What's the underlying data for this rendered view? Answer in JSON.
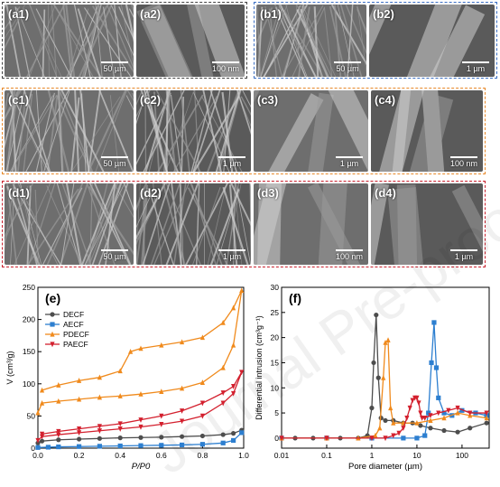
{
  "sem_panels": [
    {
      "label": "(a1)",
      "scale": "50 µm",
      "group": "a"
    },
    {
      "label": "(a2)",
      "scale": "100 nm",
      "group": "a"
    },
    {
      "label": "(b1)",
      "scale": "50 µm",
      "group": "b"
    },
    {
      "label": "(b2)",
      "scale": "1 µm",
      "group": "b"
    },
    {
      "label": "(c1)",
      "scale": "50 µm",
      "group": "c"
    },
    {
      "label": "(c2)",
      "scale": "1 µm",
      "group": "c"
    },
    {
      "label": "(c3)",
      "scale": "1 µm",
      "group": "c"
    },
    {
      "label": "(c4)",
      "scale": "100 nm",
      "group": "c"
    },
    {
      "label": "(d1)",
      "scale": "50 µm",
      "group": "d"
    },
    {
      "label": "(d2)",
      "scale": "1 µm",
      "group": "d"
    },
    {
      "label": "(d3)",
      "scale": "100 nm",
      "group": "d"
    },
    {
      "label": "(d4)",
      "scale": "1 µm",
      "group": "d"
    }
  ],
  "group_colors": {
    "a": "#444444",
    "b": "#3b6fc4",
    "c": "#e8892a",
    "d": "#c8202d"
  },
  "chart_data": [
    {
      "type": "line",
      "panel_label": "(e)",
      "xlabel": "P/P0",
      "ylabel": "V (cm³/g)",
      "xlim": [
        0,
        1.0
      ],
      "ylim": [
        0,
        250
      ],
      "xticks": [
        "0.0",
        "0.2",
        "0.4",
        "0.6",
        "0.8",
        "1.0"
      ],
      "yticks": [
        "0",
        "50",
        "100",
        "150",
        "200",
        "250"
      ],
      "legend_position": "top-left",
      "series": [
        {
          "name": "DECF",
          "color": "#4d4d4d",
          "marker": "circle",
          "x": [
            0,
            0.02,
            0.1,
            0.2,
            0.3,
            0.4,
            0.5,
            0.6,
            0.7,
            0.8,
            0.9,
            0.95,
            0.99
          ],
          "y": [
            8,
            11,
            13,
            14,
            15,
            16,
            16.5,
            17,
            18,
            19,
            21,
            23,
            28
          ]
        },
        {
          "name": "AECF",
          "color": "#2d7fd0",
          "marker": "square",
          "x": [
            0,
            0.05,
            0.1,
            0.2,
            0.3,
            0.4,
            0.5,
            0.6,
            0.7,
            0.8,
            0.9,
            0.95,
            0.99
          ],
          "y": [
            1,
            1.5,
            2,
            2.5,
            3,
            3.5,
            4,
            4.5,
            5,
            6,
            8,
            12,
            24
          ]
        },
        {
          "name": "PDECF",
          "color": "#f08a1c",
          "marker": "triangle-up",
          "x": [
            0,
            0.02,
            0.1,
            0.2,
            0.3,
            0.4,
            0.5,
            0.6,
            0.7,
            0.8,
            0.9,
            0.95,
            0.99,
            0.95,
            0.9,
            0.8,
            0.7,
            0.6,
            0.5,
            0.45,
            0.4,
            0.3,
            0.2,
            0.1,
            0.02
          ],
          "y": [
            55,
            70,
            73,
            76,
            79,
            81,
            84,
            88,
            93,
            102,
            125,
            160,
            245,
            218,
            195,
            172,
            165,
            160,
            155,
            150,
            120,
            110,
            105,
            98,
            90
          ]
        },
        {
          "name": "PAECF",
          "color": "#d3202e",
          "marker": "triangle-down",
          "x": [
            0,
            0.02,
            0.1,
            0.2,
            0.3,
            0.4,
            0.5,
            0.6,
            0.7,
            0.8,
            0.9,
            0.95,
            0.99,
            0.95,
            0.9,
            0.8,
            0.7,
            0.6,
            0.5,
            0.4,
            0.3,
            0.2,
            0.1,
            0.02
          ],
          "y": [
            12,
            18,
            21,
            24,
            27,
            30,
            33,
            37,
            42,
            50,
            70,
            85,
            118,
            96,
            86,
            70,
            58,
            50,
            44,
            38,
            34,
            30,
            26,
            22
          ]
        }
      ]
    },
    {
      "type": "line",
      "panel_label": "(f)",
      "xlabel": "Pore diameter (µm)",
      "ylabel": "Differential intrusion (cm³g⁻¹)",
      "xscale": "log",
      "xlim": [
        0.01,
        400
      ],
      "ylim": [
        -2,
        30
      ],
      "xticks": [
        "0.01",
        "0.1",
        "1",
        "10",
        "100"
      ],
      "yticks": [
        "0",
        "5",
        "10",
        "15",
        "20",
        "25",
        "30"
      ],
      "series": [
        {
          "name": "DECF",
          "color": "#4d4d4d",
          "marker": "circle",
          "x": [
            0.01,
            0.02,
            0.05,
            0.1,
            0.2,
            0.5,
            0.8,
            1.0,
            1.1,
            1.25,
            1.4,
            1.6,
            2,
            3,
            5,
            8,
            12,
            20,
            40,
            80,
            150,
            350
          ],
          "y": [
            0,
            0,
            0,
            0,
            0,
            0,
            0.5,
            6,
            15,
            24.5,
            12,
            4,
            3.5,
            3.5,
            3,
            3,
            2.5,
            2,
            1.5,
            1.2,
            2,
            3
          ]
        },
        {
          "name": "AECF",
          "color": "#2d7fd0",
          "marker": "square",
          "x": [
            0.01,
            0.1,
            1,
            5,
            10,
            15,
            18,
            21,
            24,
            27,
            30,
            40,
            60,
            100,
            200,
            350
          ],
          "y": [
            0,
            0,
            0,
            0,
            0,
            0.5,
            5,
            15,
            23,
            14,
            8,
            5,
            4.5,
            5.5,
            5,
            4.5
          ]
        },
        {
          "name": "PDECF",
          "color": "#f08a1c",
          "marker": "triangle-up",
          "x": [
            0.01,
            0.1,
            0.5,
            1.2,
            1.5,
            1.8,
            2.0,
            2.3,
            2.6,
            3,
            5,
            10,
            20,
            40,
            80,
            150,
            350
          ],
          "y": [
            0,
            0,
            0,
            0.5,
            2,
            12,
            19,
            19.5,
            6,
            3,
            3,
            3,
            3.5,
            4,
            5,
            4.5,
            4
          ]
        },
        {
          "name": "PAECF",
          "color": "#d3202e",
          "marker": "triangle-down",
          "x": [
            0.01,
            0.1,
            1,
            2,
            3,
            4,
            5,
            6,
            7,
            8,
            9,
            10,
            11,
            12,
            13,
            15,
            20,
            30,
            50,
            80,
            150,
            350
          ],
          "y": [
            0,
            0,
            0,
            0,
            0.5,
            1,
            2,
            4,
            6,
            7.5,
            8,
            8,
            7,
            5,
            4,
            4,
            4.5,
            5,
            5.5,
            6,
            5,
            5
          ]
        }
      ]
    }
  ]
}
